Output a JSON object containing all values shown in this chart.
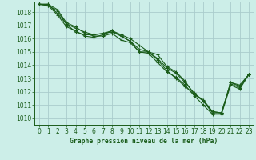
{
  "title": "Graphe pression niveau de la mer (hPa)",
  "bg_color": "#cceee8",
  "grid_color": "#aacccc",
  "line_color": "#1a5c1a",
  "xlim": [
    -0.5,
    23.5
  ],
  "ylim": [
    1009.5,
    1018.8
  ],
  "yticks": [
    1010,
    1011,
    1012,
    1013,
    1014,
    1015,
    1016,
    1017,
    1018
  ],
  "xticks": [
    0,
    1,
    2,
    3,
    4,
    5,
    6,
    7,
    8,
    9,
    10,
    11,
    12,
    13,
    14,
    15,
    16,
    17,
    18,
    19,
    20,
    21,
    22,
    23
  ],
  "series": [
    [
      1018.6,
      1018.6,
      1017.9,
      1017.1,
      1016.5,
      1016.3,
      1016.3,
      1016.4,
      1016.5,
      1016.2,
      1015.8,
      1015.0,
      1015.0,
      1014.4,
      1013.6,
      1013.0,
      1012.4,
      1011.8,
      1011.3,
      1010.4,
      1010.4,
      1012.7,
      1012.5,
      1013.3
    ],
    [
      1018.6,
      1018.5,
      1018.1,
      1017.1,
      1016.8,
      1016.5,
      1016.3,
      1016.4,
      1016.6,
      1016.2,
      1015.8,
      1015.2,
      1015.0,
      1014.5,
      1013.8,
      1013.4,
      1012.7,
      1011.9,
      1011.3,
      1010.5,
      1010.4,
      1012.6,
      1012.3,
      1013.3
    ],
    [
      1018.6,
      1018.6,
      1018.2,
      1017.2,
      1016.9,
      1016.4,
      1016.2,
      1016.2,
      1016.4,
      1015.9,
      1015.7,
      1015.0,
      1014.9,
      1014.2,
      1013.5,
      1013.1,
      1012.5,
      1011.7,
      1011.0,
      1010.3,
      1010.3,
      1012.5,
      1012.2,
      1013.3
    ],
    [
      1018.6,
      1018.5,
      1017.8,
      1016.9,
      1016.6,
      1016.2,
      1016.1,
      1016.3,
      1016.6,
      1016.3,
      1016.0,
      1015.5,
      1015.0,
      1014.8,
      1013.9,
      1013.5,
      1012.8,
      1011.8,
      1011.4,
      1010.5,
      1010.4,
      1012.7,
      1012.4,
      1013.3
    ]
  ]
}
